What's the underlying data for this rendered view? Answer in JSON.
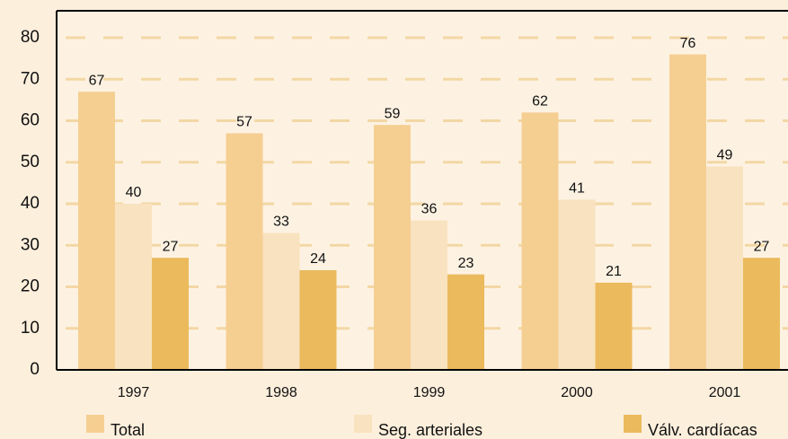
{
  "chart_data": {
    "type": "bar",
    "categories": [
      "1997",
      "1998",
      "1999",
      "2000",
      "2001"
    ],
    "series": [
      {
        "name": "Total",
        "color": "#f5cf92",
        "values": [
          67,
          57,
          59,
          62,
          76
        ]
      },
      {
        "name": "Seg. arteriales",
        "color": "#f9e2bf",
        "values": [
          40,
          33,
          36,
          41,
          49
        ]
      },
      {
        "name": "Válv. cardíacas",
        "color": "#ebba5c",
        "values": [
          27,
          24,
          23,
          21,
          27
        ]
      }
    ],
    "ylim": [
      0,
      86.5
    ],
    "yticks": [
      0,
      10,
      20,
      30,
      40,
      50,
      60,
      70,
      80
    ],
    "grid": true
  }
}
